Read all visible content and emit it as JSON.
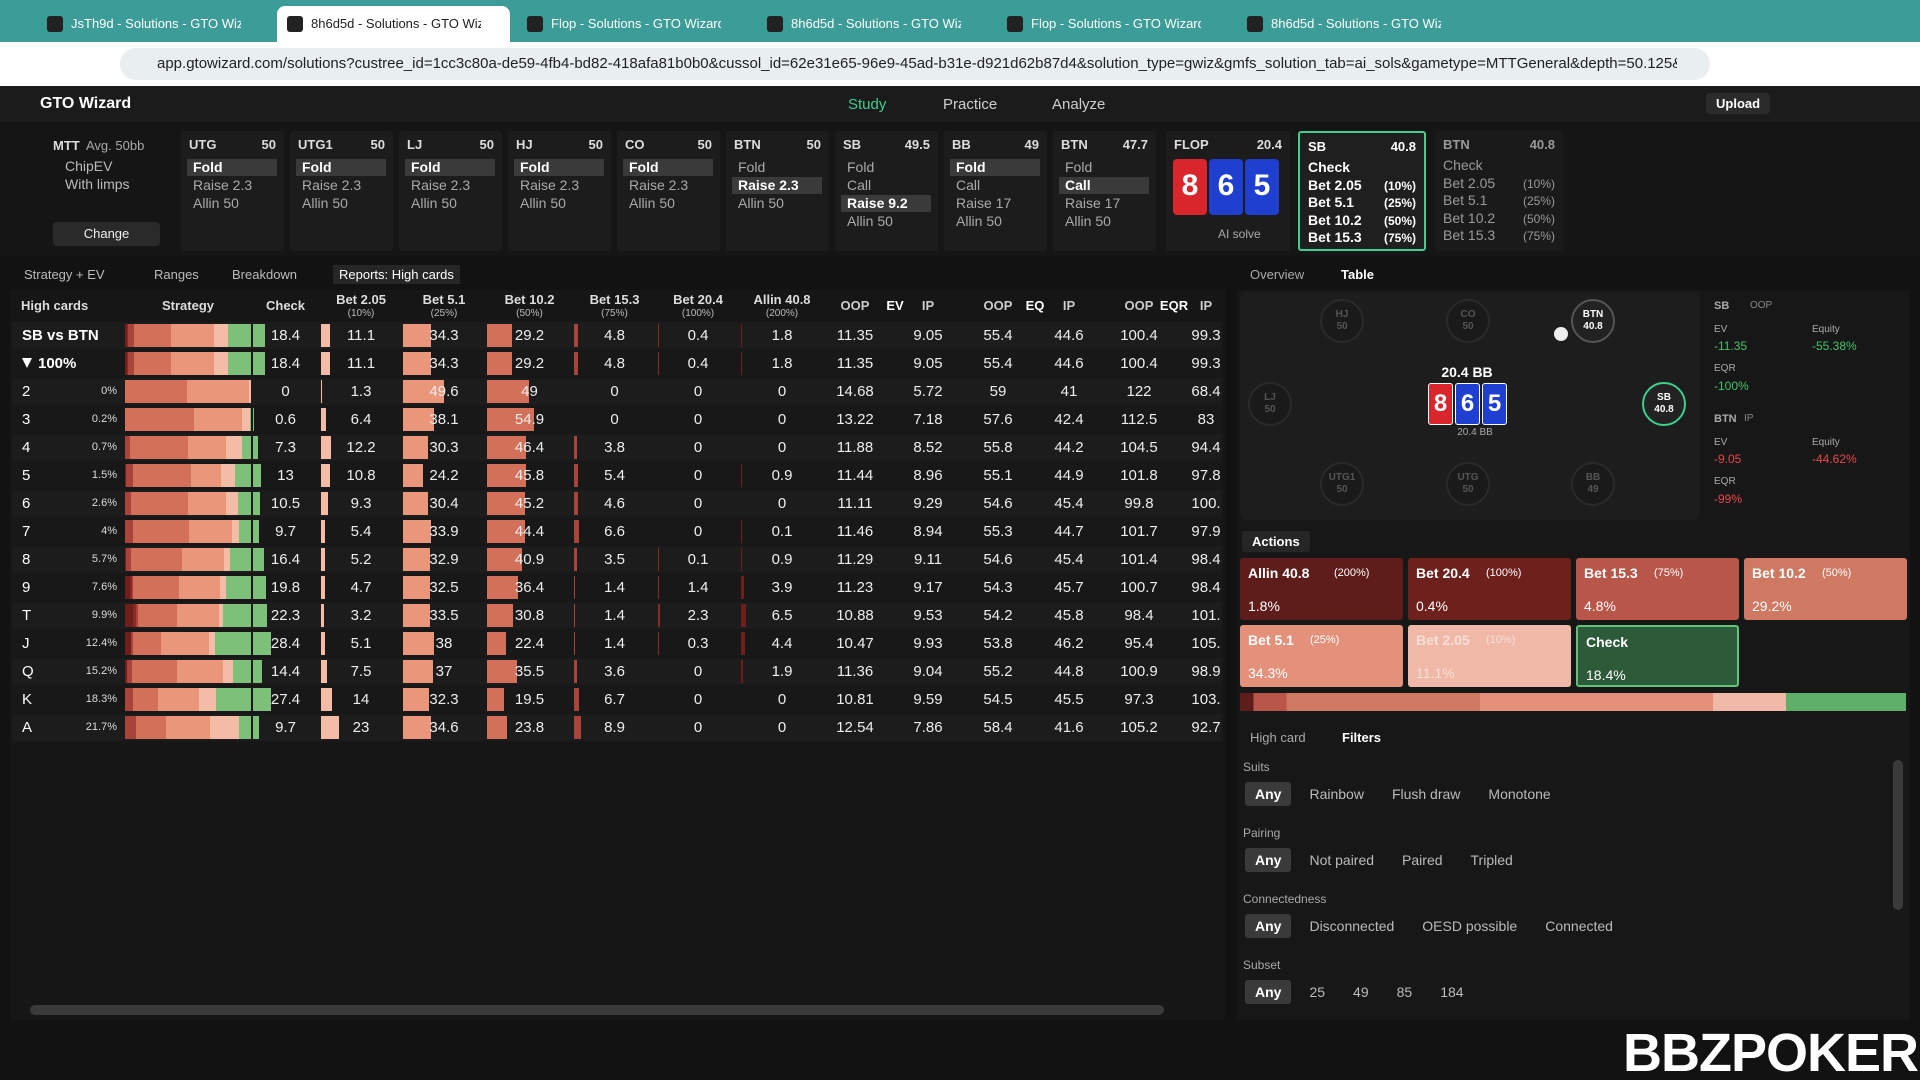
{
  "browser": {
    "tabs": [
      "JsTh9d - Solutions - GTO Wizar",
      "8h6d5d - Solutions - GTO Wiza",
      "Flop - Solutions - GTO Wizard",
      "8h6d5d - Solutions - GTO Wiza",
      "Flop - Solutions - GTO Wizard",
      "8h6d5d - Solutions - GTO Wiza"
    ],
    "active": 1,
    "url": "app.gtowizard.com/solutions?custree_id=1cc3c80a-de59-4fb4-bd82-418afa81b0b0&cussol_id=62e31e65-96e9-45ad-b31e-d921d62b87d4&solution_type=gwiz&gmfs_solution_tab=ai_sols&gametype=MTTGeneral&depth=50.125&gmfft_sort_k..."
  },
  "app": {
    "logo": "GTO Wizard",
    "nav": [
      "Study",
      "Practice",
      "Analyze"
    ],
    "upload": "Upload"
  },
  "game": {
    "title": "MTT",
    "stack": "Avg. 50bb",
    "options": [
      "ChipEV",
      "With limps"
    ],
    "change": "Change"
  },
  "positions": [
    {
      "name": "UTG",
      "stack": "50",
      "actions": [
        "Fold",
        "Raise 2.3",
        "Allin 50"
      ],
      "selected": 0
    },
    {
      "name": "UTG1",
      "stack": "50",
      "actions": [
        "Fold",
        "Raise 2.3",
        "Allin 50"
      ],
      "selected": 0
    },
    {
      "name": "LJ",
      "stack": "50",
      "actions": [
        "Fold",
        "Raise 2.3",
        "Allin 50"
      ],
      "selected": 0
    },
    {
      "name": "HJ",
      "stack": "50",
      "actions": [
        "Fold",
        "Raise 2.3",
        "Allin 50"
      ],
      "selected": 0
    },
    {
      "name": "CO",
      "stack": "50",
      "actions": [
        "Fold",
        "Raise 2.3",
        "Allin 50"
      ],
      "selected": 0
    },
    {
      "name": "BTN",
      "stack": "50",
      "actions": [
        "Fold",
        "Raise 2.3",
        "Allin 50"
      ],
      "selected": 1
    },
    {
      "name": "SB",
      "stack": "49.5",
      "actions": [
        "Fold",
        "Call",
        "Raise 9.2",
        "Allin 50"
      ],
      "selected": 2
    },
    {
      "name": "BB",
      "stack": "49",
      "actions": [
        "Fold",
        "Call",
        "Raise 17",
        "Allin 50"
      ],
      "selected": 0
    },
    {
      "name": "BTN",
      "stack": "47.7",
      "actions": [
        "Fold",
        "Call",
        "Raise 17",
        "Allin 50"
      ],
      "selected": 1
    }
  ],
  "flop": {
    "label": "FLOP",
    "pot": "20.4",
    "cards": [
      {
        "rank": "8",
        "color": "#d9262c"
      },
      {
        "rank": "6",
        "color": "#1f3fd0"
      },
      {
        "rank": "5",
        "color": "#1f3fd0"
      }
    ],
    "ai": "AI solve"
  },
  "current": [
    {
      "name": "SB",
      "stack": "40.8",
      "active": true,
      "actions": [
        {
          "label": "Check"
        },
        {
          "label": "Bet 2.05",
          "pct": "(10%)"
        },
        {
          "label": "Bet 5.1",
          "pct": "(25%)"
        },
        {
          "label": "Bet 10.2",
          "pct": "(50%)"
        },
        {
          "label": "Bet 15.3",
          "pct": "(75%)"
        }
      ]
    },
    {
      "name": "BTN",
      "stack": "40.8",
      "active": false,
      "actions": [
        {
          "label": "Check"
        },
        {
          "label": "Bet 2.05",
          "pct": "(10%)"
        },
        {
          "label": "Bet 5.1",
          "pct": "(25%)"
        },
        {
          "label": "Bet 10.2",
          "pct": "(50%)"
        },
        {
          "label": "Bet 15.3",
          "pct": "(75%)"
        }
      ]
    }
  ],
  "toolbar": {
    "tabs": [
      "Strategy + EV",
      "Ranges",
      "Breakdown",
      "Reports: High cards"
    ],
    "active": 3
  },
  "table": {
    "columns": [
      {
        "label": "High cards"
      },
      {
        "label": "Strategy"
      },
      {
        "label": "Check",
        "color": "#7cc07a"
      },
      {
        "label": "Bet 2.05",
        "sub": "(10%)",
        "color": "#f4bba6"
      },
      {
        "label": "Bet 5.1",
        "sub": "(25%)",
        "color": "#e9967a"
      },
      {
        "label": "Bet 10.2",
        "sub": "(50%)",
        "color": "#d2705a"
      },
      {
        "label": "Bet 15.3",
        "sub": "(75%)",
        "color": "#a9443a"
      },
      {
        "label": "Bet 20.4",
        "sub": "(100%)",
        "color": "#8a2a24"
      },
      {
        "label": "Allin 40.8",
        "sub": "(200%)",
        "color": "#6e1f1c"
      },
      {
        "label": "OOP"
      },
      {
        "label": "EV"
      },
      {
        "label": "IP"
      },
      {
        "label": "OOP"
      },
      {
        "label": "EQ"
      },
      {
        "label": "IP"
      },
      {
        "label": "OOP"
      },
      {
        "label": "EQR"
      },
      {
        "label": "IP"
      }
    ],
    "rows": [
      {
        "label": "SB vs BTN",
        "strategy": [
          18.4,
          11.1,
          34.3,
          29.2,
          4.8,
          0.4,
          1.8
        ],
        "stats": [
          "11.35",
          "9.05",
          "55.4",
          "44.6",
          "100.4",
          "99.3"
        ]
      },
      {
        "label": "100%",
        "strategy": [
          18.4,
          11.1,
          34.3,
          29.2,
          4.8,
          0.4,
          1.8
        ],
        "stats": [
          "11.35",
          "9.05",
          "55.4",
          "44.6",
          "100.4",
          "99.3"
        ]
      },
      {
        "label": "2",
        "freq": "0%",
        "strategy": [
          0,
          1.3,
          49.6,
          49,
          0,
          0,
          0
        ],
        "stats": [
          "14.68",
          "5.72",
          "59",
          "41",
          "122",
          "68.4"
        ]
      },
      {
        "label": "3",
        "freq": "0.2%",
        "strategy": [
          0.6,
          6.4,
          38.1,
          54.9,
          0,
          0,
          0
        ],
        "stats": [
          "13.22",
          "7.18",
          "57.6",
          "42.4",
          "112.5",
          "83"
        ]
      },
      {
        "label": "4",
        "freq": "0.7%",
        "strategy": [
          7.3,
          12.2,
          30.3,
          46.4,
          3.8,
          0,
          0
        ],
        "stats": [
          "11.88",
          "8.52",
          "55.8",
          "44.2",
          "104.5",
          "94.4"
        ]
      },
      {
        "label": "5",
        "freq": "1.5%",
        "strategy": [
          13,
          10.8,
          24.2,
          45.8,
          5.4,
          0,
          0.9
        ],
        "stats": [
          "11.44",
          "8.96",
          "55.1",
          "44.9",
          "101.8",
          "97.8"
        ]
      },
      {
        "label": "6",
        "freq": "2.6%",
        "strategy": [
          10.5,
          9.3,
          30.4,
          45.2,
          4.6,
          0,
          0
        ],
        "stats": [
          "11.11",
          "9.29",
          "54.6",
          "45.4",
          "99.8",
          "100."
        ]
      },
      {
        "label": "7",
        "freq": "4%",
        "strategy": [
          9.7,
          5.4,
          33.9,
          44.4,
          6.6,
          0,
          0.1
        ],
        "stats": [
          "11.46",
          "8.94",
          "55.3",
          "44.7",
          "101.7",
          "97.9"
        ]
      },
      {
        "label": "8",
        "freq": "5.7%",
        "strategy": [
          16.4,
          5.2,
          32.9,
          40.9,
          3.5,
          0.1,
          0.9
        ],
        "stats": [
          "11.29",
          "9.11",
          "54.6",
          "45.4",
          "101.4",
          "98.4"
        ]
      },
      {
        "label": "9",
        "freq": "7.6%",
        "strategy": [
          19.8,
          4.7,
          32.5,
          36.4,
          1.4,
          1.4,
          3.9
        ],
        "stats": [
          "11.23",
          "9.17",
          "54.3",
          "45.7",
          "100.7",
          "98.4"
        ]
      },
      {
        "label": "T",
        "freq": "9.9%",
        "strategy": [
          22.3,
          3.2,
          33.5,
          30.8,
          1.4,
          2.3,
          6.5
        ],
        "stats": [
          "10.88",
          "9.53",
          "54.2",
          "45.8",
          "98.4",
          "101."
        ]
      },
      {
        "label": "J",
        "freq": "12.4%",
        "strategy": [
          28.4,
          5.1,
          38,
          22.4,
          1.4,
          0.3,
          4.4
        ],
        "stats": [
          "10.47",
          "9.93",
          "53.8",
          "46.2",
          "95.4",
          "105."
        ]
      },
      {
        "label": "Q",
        "freq": "15.2%",
        "strategy": [
          14.4,
          7.5,
          37,
          35.5,
          3.6,
          0,
          1.9
        ],
        "stats": [
          "11.36",
          "9.04",
          "55.2",
          "44.8",
          "100.9",
          "98.9"
        ]
      },
      {
        "label": "K",
        "freq": "18.3%",
        "strategy": [
          27.4,
          14,
          32.3,
          19.5,
          6.7,
          0,
          0
        ],
        "stats": [
          "10.81",
          "9.59",
          "54.5",
          "45.5",
          "97.3",
          "103."
        ]
      },
      {
        "label": "A",
        "freq": "21.7%",
        "strategy": [
          9.7,
          23,
          34.6,
          23.8,
          8.9,
          0,
          0
        ],
        "stats": [
          "12.54",
          "7.86",
          "58.4",
          "41.6",
          "105.2",
          "92.7"
        ]
      }
    ]
  },
  "right": {
    "tabs": [
      "Overview",
      "Table"
    ],
    "active": 1,
    "seats": [
      {
        "name": "HJ",
        "stack": "50"
      },
      {
        "name": "CO",
        "stack": "50"
      },
      {
        "name": "BTN",
        "stack": "40.8"
      },
      {
        "name": "LJ",
        "stack": "50"
      },
      {
        "name": "SB",
        "stack": "40.8"
      },
      {
        "name": "UTG1",
        "stack": "50"
      },
      {
        "name": "UTG",
        "stack": "50"
      },
      {
        "name": "BB",
        "stack": "49"
      }
    ],
    "pot": "20.4 BB",
    "stack_small": "20.4 BB",
    "stat_labels": [
      "EV",
      "Equity",
      "EQR"
    ],
    "players": [
      {
        "player": "SB",
        "side": "OOP",
        "ev": "-11.35",
        "equity": "-55.38%",
        "eqr": "-100%",
        "color": "#3fc46a"
      },
      {
        "player": "BTN",
        "side": "IP",
        "ev": "-9.05",
        "equity": "-44.62%",
        "eqr": "-99%",
        "color": "#e8474a"
      }
    ]
  },
  "actions": {
    "title": "Actions",
    "selected": 6,
    "tiles": [
      {
        "label": "Allin 40.8",
        "sub": "(200%)",
        "pct": "1.8%",
        "color": "#5e1d1a"
      },
      {
        "label": "Bet 20.4",
        "sub": "(100%)",
        "pct": "0.4%",
        "color": "#6e211c"
      },
      {
        "label": "Bet 15.3",
        "sub": "(75%)",
        "pct": "4.8%",
        "color": "#b9564a"
      },
      {
        "label": "Bet 10.2",
        "sub": "(50%)",
        "pct": "29.2%",
        "color": "#cf7862"
      },
      {
        "label": "Bet 5.1",
        "sub": "(25%)",
        "pct": "34.3%",
        "color": "#e3917a"
      },
      {
        "label": "Bet 2.05",
        "sub": "(10%)",
        "pct": "11.1%",
        "color": "#f0b8a6"
      },
      {
        "label": "Check",
        "pct": "18.4%",
        "color": "#2d5b3a"
      }
    ]
  },
  "filters": {
    "tabs": [
      "High card",
      "Filters"
    ],
    "active": 1,
    "groups": [
      {
        "name": "Suits",
        "options": [
          "Any",
          "Rainbow",
          "Flush draw",
          "Monotone"
        ]
      },
      {
        "name": "Pairing",
        "options": [
          "Any",
          "Not paired",
          "Paired",
          "Tripled"
        ]
      },
      {
        "name": "Connectedness",
        "options": [
          "Any",
          "Disconnected",
          "OESD possible",
          "Connected"
        ]
      },
      {
        "name": "Subset",
        "options": [
          "Any",
          "25",
          "49",
          "85",
          "184"
        ]
      }
    ]
  },
  "watermark": "BBZPOKER"
}
